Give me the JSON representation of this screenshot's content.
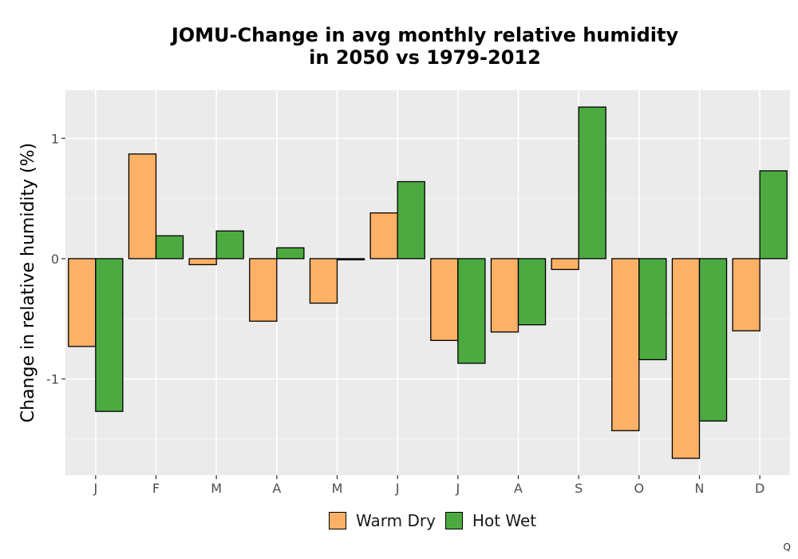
{
  "chart_data": {
    "type": "bar",
    "title_line1": "JOMU-Change in avg monthly relative humidity",
    "title_line2": "in 2050 vs 1979-2012",
    "xlabel": "",
    "ylabel": "Change in relative humidity (%)",
    "categories": [
      "J",
      "F",
      "M",
      "A",
      "M",
      "J",
      "J",
      "A",
      "S",
      "O",
      "N",
      "D"
    ],
    "ylim": [
      -1.8,
      1.4
    ],
    "yticks": [
      -1,
      0,
      1
    ],
    "ytick_labels": [
      "-1",
      "0",
      "1"
    ],
    "grid": true,
    "legend_position": "bottom",
    "series": [
      {
        "name": "Warm Dry",
        "color": "#FDB166",
        "values": [
          -0.73,
          0.87,
          -0.05,
          -0.52,
          -0.37,
          0.38,
          -0.68,
          -0.61,
          -0.09,
          -1.43,
          -1.66,
          -0.6
        ]
      },
      {
        "name": "Hot Wet",
        "color": "#4CAA40",
        "values": [
          -1.27,
          0.19,
          0.23,
          0.09,
          -0.01,
          0.64,
          -0.87,
          -0.55,
          1.26,
          -0.84,
          -1.35,
          0.73
        ]
      }
    ]
  },
  "corner_mark": "Q"
}
